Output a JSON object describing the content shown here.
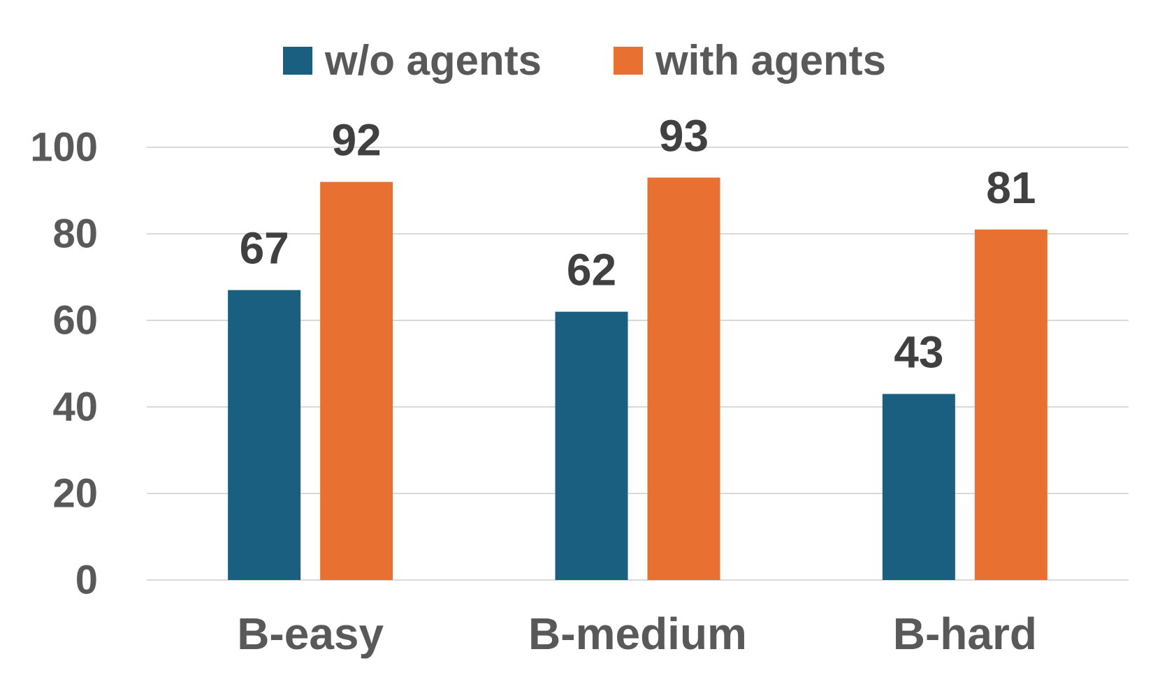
{
  "chart_data": {
    "type": "bar",
    "categories": [
      "B-easy",
      "B-medium",
      "B-hard"
    ],
    "series": [
      {
        "name": "w/o agents",
        "values": [
          67,
          62,
          43
        ],
        "color": "#1a5e80"
      },
      {
        "name": "with agents",
        "values": [
          92,
          93,
          81
        ],
        "color": "#e87131"
      }
    ],
    "title": "",
    "xlabel": "",
    "ylabel": "",
    "ylim": [
      0,
      100
    ],
    "yticks": [
      0,
      20,
      40,
      60,
      80,
      100
    ],
    "grid": true,
    "legend_position": "top-center",
    "data_labels": true
  }
}
